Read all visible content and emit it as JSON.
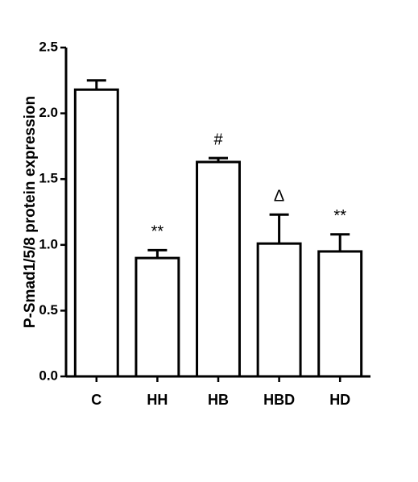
{
  "chart_data": {
    "type": "bar",
    "y_label": "P-Smad1/5/8 protein expression",
    "categories": [
      "C",
      "HH",
      "HB",
      "HBD",
      "HD"
    ],
    "values": [
      2.18,
      0.9,
      1.63,
      1.01,
      0.95
    ],
    "errors": [
      0.07,
      0.06,
      0.03,
      0.22,
      0.13
    ],
    "annotations": [
      null,
      "**",
      "#",
      "Δ",
      "**"
    ],
    "color": "#ffffff",
    "ylim": [
      0,
      2.5
    ],
    "yticks": [
      {
        "value": 0,
        "label": "0.0"
      },
      0.5,
      {
        "value": 1,
        "label": "1.0"
      },
      1.5,
      {
        "value": 2,
        "label": "2.0"
      },
      2.5
    ],
    "grid": false
  }
}
